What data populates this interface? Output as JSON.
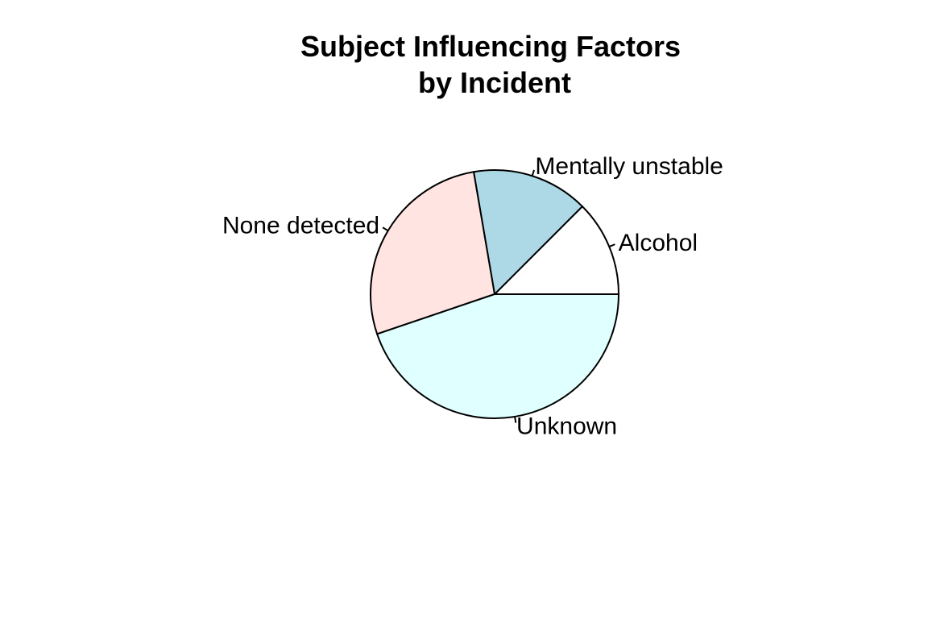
{
  "chart_data": {
    "type": "pie",
    "title_lines": [
      "Subject Influencing Factors",
      "by Incident"
    ],
    "slices": [
      {
        "label": "Alcohol",
        "value": 12.5,
        "color": "#ffffff"
      },
      {
        "label": "Mentally unstable",
        "value": 15.2,
        "color": "#add8e6"
      },
      {
        "label": "None detected",
        "value": 27.5,
        "color": "#ffe4e1"
      },
      {
        "label": "Unknown",
        "value": 44.8,
        "color": "#e0ffff"
      }
    ],
    "start_angle_deg": 0,
    "direction": "counterclockwise",
    "legend": "none"
  }
}
